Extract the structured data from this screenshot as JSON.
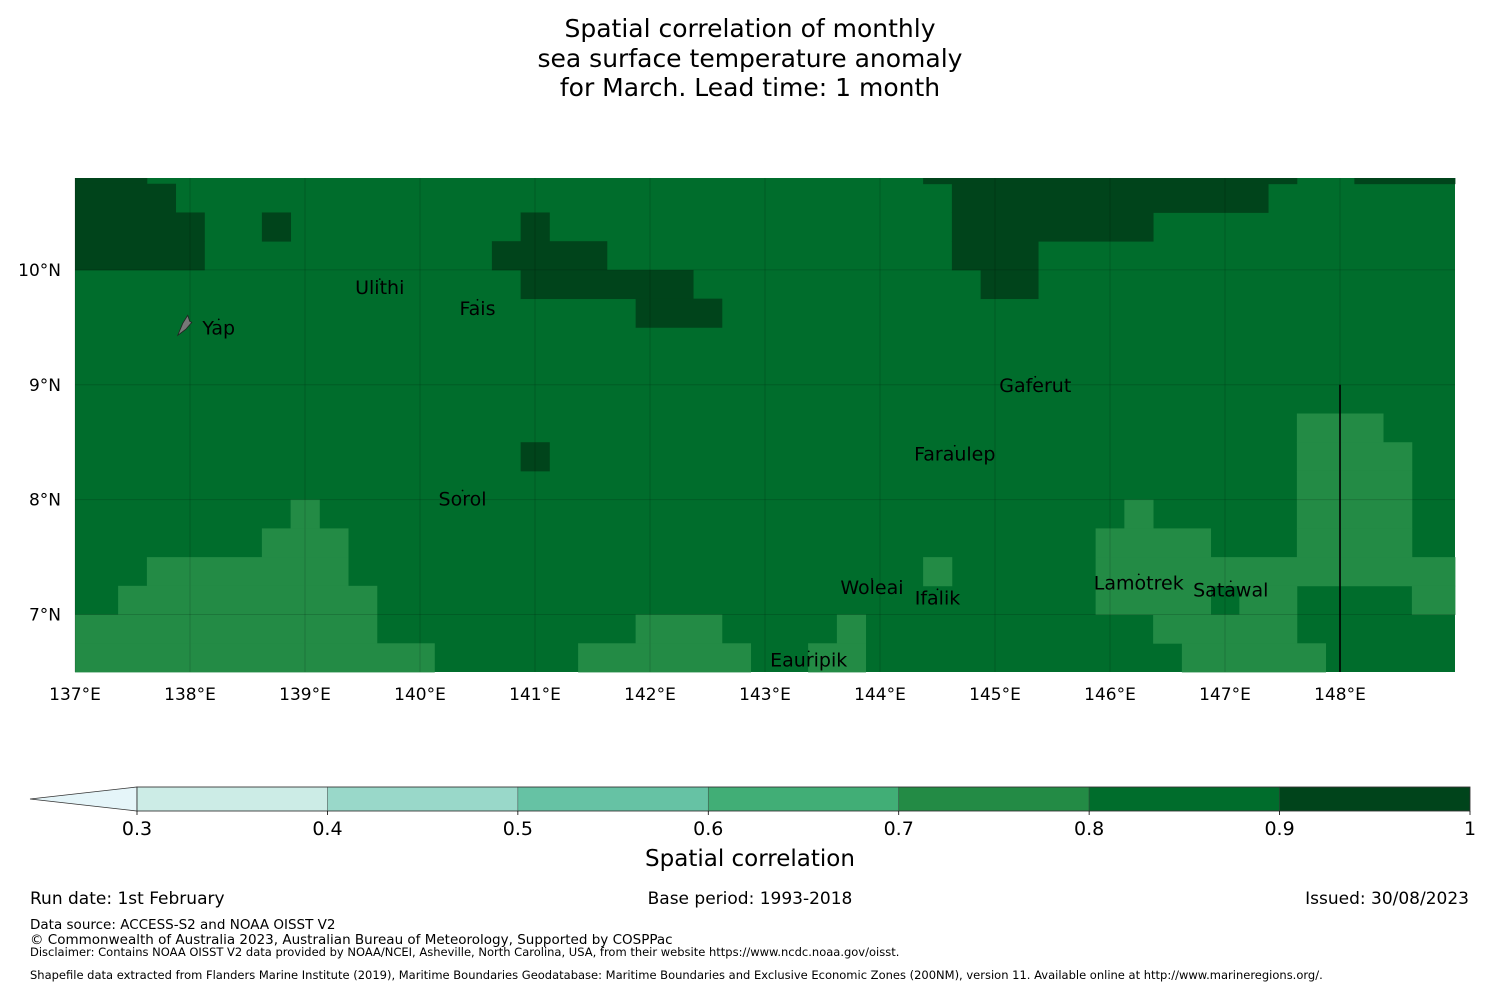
{
  "title_lines": [
    "Spatial correlation of monthly",
    "sea surface temperature anomaly",
    "for March. Lead time: 1 month"
  ],
  "chart_data": {
    "type": "heatmap",
    "title": "Spatial correlation of monthly sea surface temperature anomaly for March. Lead time: 1 month",
    "xlabel": "",
    "ylabel": "",
    "x_range": [
      137,
      149
    ],
    "y_range": [
      6.5,
      10.8
    ],
    "x_ticks": [
      137,
      138,
      139,
      140,
      141,
      142,
      143,
      144,
      145,
      146,
      147,
      148
    ],
    "x_tick_labels": [
      "137°E",
      "138°E",
      "139°E",
      "140°E",
      "141°E",
      "142°E",
      "143°E",
      "144°E",
      "145°E",
      "146°E",
      "147°E",
      "148°E"
    ],
    "y_ticks": [
      7,
      8,
      9,
      10
    ],
    "y_tick_labels": [
      "7°N",
      "8°N",
      "9°N",
      "10°N"
    ],
    "grid": true,
    "cell_size_deg": 0.25,
    "default_class": "0.8-0.9",
    "classes": [
      {
        "range": "<0.3",
        "color": "#e5f5f9"
      },
      {
        "range": "0.3-0.4",
        "color": "#ccece6"
      },
      {
        "range": "0.4-0.5",
        "color": "#99d8c9"
      },
      {
        "range": "0.5-0.6",
        "color": "#66c2a4"
      },
      {
        "range": "0.6-0.7",
        "color": "#41ae76"
      },
      {
        "range": "0.7-0.8",
        "color": "#238b45"
      },
      {
        "range": "0.8-0.9",
        "color": "#006d2c"
      },
      {
        "range": "0.9-1",
        "color": "#00441b"
      }
    ],
    "cells": {
      "0.9-1": [
        {
          "lat": [
            10.75,
            10.8
          ],
          "lon": [
            137.0,
            137.625
          ]
        },
        {
          "lat": [
            10.75,
            10.8
          ],
          "lon": [
            144.375,
            147.625
          ]
        },
        {
          "lat": [
            10.75,
            10.8
          ],
          "lon": [
            148.125,
            149.0
          ]
        },
        {
          "lat": [
            10.5,
            10.75
          ],
          "lon": [
            137.0,
            137.875
          ]
        },
        {
          "lat": [
            10.5,
            10.75
          ],
          "lon": [
            144.625,
            147.375
          ]
        },
        {
          "lat": [
            10.25,
            10.5
          ],
          "lon": [
            137.0,
            138.125
          ]
        },
        {
          "lat": [
            10.25,
            10.5
          ],
          "lon": [
            138.625,
            138.875
          ]
        },
        {
          "lat": [
            10.25,
            10.5
          ],
          "lon": [
            140.875,
            141.125
          ]
        },
        {
          "lat": [
            10.25,
            10.5
          ],
          "lon": [
            144.625,
            146.375
          ]
        },
        {
          "lat": [
            10.0,
            10.25
          ],
          "lon": [
            137.0,
            138.125
          ]
        },
        {
          "lat": [
            10.0,
            10.25
          ],
          "lon": [
            140.625,
            141.625
          ]
        },
        {
          "lat": [
            10.0,
            10.25
          ],
          "lon": [
            144.625,
            145.375
          ]
        },
        {
          "lat": [
            9.75,
            10.0
          ],
          "lon": [
            140.875,
            142.375
          ]
        },
        {
          "lat": [
            9.75,
            10.0
          ],
          "lon": [
            144.875,
            145.375
          ]
        },
        {
          "lat": [
            9.5,
            9.75
          ],
          "lon": [
            141.875,
            142.625
          ]
        },
        {
          "lat": [
            8.25,
            8.5
          ],
          "lon": [
            140.875,
            141.125
          ]
        }
      ],
      "0.7-0.8": [
        {
          "lat": [
            8.5,
            8.75
          ],
          "lon": [
            147.625,
            148.375
          ]
        },
        {
          "lat": [
            8.25,
            8.5
          ],
          "lon": [
            147.625,
            148.625
          ]
        },
        {
          "lat": [
            8.0,
            8.25
          ],
          "lon": [
            147.625,
            148.625
          ]
        },
        {
          "lat": [
            7.75,
            8.0
          ],
          "lon": [
            138.875,
            139.125
          ]
        },
        {
          "lat": [
            7.75,
            8.0
          ],
          "lon": [
            146.125,
            146.375
          ]
        },
        {
          "lat": [
            7.75,
            8.0
          ],
          "lon": [
            147.625,
            148.625
          ]
        },
        {
          "lat": [
            7.5,
            7.75
          ],
          "lon": [
            138.625,
            139.375
          ]
        },
        {
          "lat": [
            7.5,
            7.75
          ],
          "lon": [
            145.875,
            146.875
          ]
        },
        {
          "lat": [
            7.5,
            7.75
          ],
          "lon": [
            147.625,
            148.625
          ]
        },
        {
          "lat": [
            7.25,
            7.5
          ],
          "lon": [
            137.625,
            139.375
          ]
        },
        {
          "lat": [
            7.25,
            7.5
          ],
          "lon": [
            144.375,
            144.625
          ]
        },
        {
          "lat": [
            7.25,
            7.5
          ],
          "lon": [
            145.875,
            149.0
          ]
        },
        {
          "lat": [
            7.0,
            7.25
          ],
          "lon": [
            137.375,
            139.625
          ]
        },
        {
          "lat": [
            7.0,
            7.25
          ],
          "lon": [
            145.875,
            146.875
          ]
        },
        {
          "lat": [
            7.0,
            7.25
          ],
          "lon": [
            147.125,
            147.625
          ]
        },
        {
          "lat": [
            7.0,
            7.25
          ],
          "lon": [
            148.625,
            149.0
          ]
        },
        {
          "lat": [
            6.75,
            7.0
          ],
          "lon": [
            137.0,
            139.625
          ]
        },
        {
          "lat": [
            6.75,
            7.0
          ],
          "lon": [
            141.875,
            142.625
          ]
        },
        {
          "lat": [
            6.75,
            7.0
          ],
          "lon": [
            143.625,
            143.875
          ]
        },
        {
          "lat": [
            6.75,
            7.0
          ],
          "lon": [
            146.375,
            147.625
          ]
        },
        {
          "lat": [
            6.5,
            6.75
          ],
          "lon": [
            137.0,
            140.125
          ]
        },
        {
          "lat": [
            6.5,
            6.75
          ],
          "lon": [
            141.375,
            142.875
          ]
        },
        {
          "lat": [
            6.5,
            6.75
          ],
          "lon": [
            143.375,
            143.875
          ]
        },
        {
          "lat": [
            6.5,
            6.75
          ],
          "lon": [
            146.625,
            147.875
          ]
        }
      ]
    },
    "places": [
      {
        "name": "Yap",
        "lon": 138.25,
        "lat": 9.5
      },
      {
        "name": "Ulithi",
        "lon": 139.65,
        "lat": 9.85
      },
      {
        "name": "Fais",
        "lon": 140.5,
        "lat": 9.67
      },
      {
        "name": "Gaferut",
        "lon": 145.35,
        "lat": 9.0
      },
      {
        "name": "Faraulep",
        "lon": 144.65,
        "lat": 8.4
      },
      {
        "name": "Sorol",
        "lon": 140.37,
        "lat": 8.01
      },
      {
        "name": "Woleai",
        "lon": 143.93,
        "lat": 7.24
      },
      {
        "name": "Ifalik",
        "lon": 144.5,
        "lat": 7.15
      },
      {
        "name": "Lamotrek",
        "lon": 146.25,
        "lat": 7.28
      },
      {
        "name": "Satawal",
        "lon": 147.05,
        "lat": 7.22
      },
      {
        "name": "Eauripik",
        "lon": 143.38,
        "lat": 6.61
      }
    ],
    "eez_boundary": {
      "lon": 148.0,
      "lat": [
        6.5,
        9.0
      ]
    },
    "colorbar": {
      "label": "Spatial correlation",
      "ticks": [
        "0.3",
        "0.4",
        "0.5",
        "0.6",
        "0.7",
        "0.8",
        "0.9",
        "1"
      ],
      "extend": "min"
    }
  },
  "footer": {
    "run_date": "Run date: 1st February",
    "base_period": "Base period: 1993-2018",
    "issued": "Issued: 30/08/2023",
    "data_source": "Data source: ACCESS-S2 and NOAA OISST V2",
    "copyright": "© Commonwealth of Australia 2023, Australian Bureau of Meteorology, Supported by COSPPac",
    "disclaimer": "Disclaimer: Contains NOAA OISST V2 data provided by NOAA/NCEI, Asheville, North Carolina, USA, from their website https://www.ncdc.noaa.gov/oisst.",
    "shapefile": "Shapefile data extracted from Flanders Marine Institute (2019), Maritime Boundaries Geodatabase: Maritime Boundaries and Exclusive Economic Zones (200NM), version 11. Available online at http://www.marineregions.org/."
  }
}
